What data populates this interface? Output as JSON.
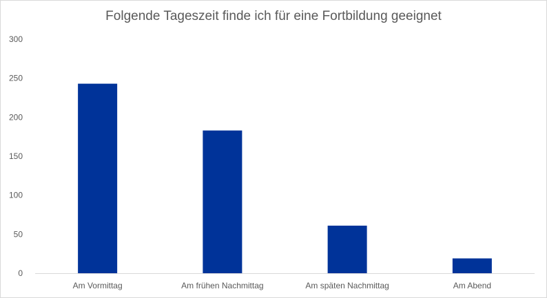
{
  "chart_data": {
    "type": "bar",
    "title": "Folgende Tageszeit finde ich für eine Fortbildung geeignet",
    "xlabel": "",
    "ylabel": "",
    "categories": [
      "Am Vormittag",
      "Am frühen Nachmittag",
      "Am späten Nachmittag",
      "Am Abend"
    ],
    "values": [
      243,
      183,
      61,
      19
    ],
    "ylim": [
      0,
      300
    ],
    "yticks": [
      "0",
      "50",
      "100",
      "150",
      "200",
      "250",
      "300"
    ],
    "grid": false,
    "legend": "none",
    "colors": {
      "bar": "#003399",
      "axis": "#d9d9d9",
      "text": "#595959"
    }
  }
}
